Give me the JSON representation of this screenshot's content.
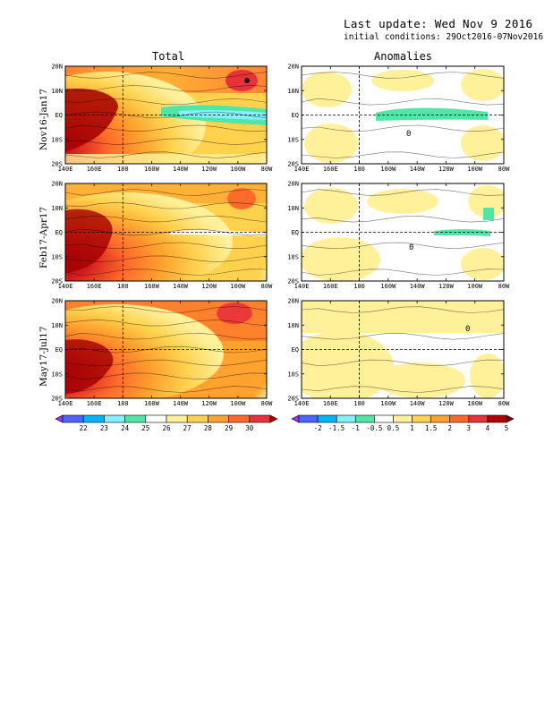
{
  "header": {
    "update": "Last update: Wed Nov 9 2016",
    "initial_conditions": "initial conditions: 29Oct2016-07Nov2016"
  },
  "columns": {
    "total": "Total",
    "anomalies": "Anomalies"
  },
  "rows": [
    "Nov16-Jan17",
    "Feb17-Apr17",
    "May17-Jul17"
  ],
  "axes": {
    "lon_ticks": [
      "140E",
      "160E",
      "180",
      "160W",
      "140W",
      "120W",
      "100W",
      "80W"
    ],
    "lat_ticks": [
      "20N",
      "10N",
      "EQ",
      "10S",
      "20S"
    ]
  },
  "colorbars": {
    "total": {
      "labels": [
        "22",
        "23",
        "24",
        "25",
        "26",
        "27",
        "28",
        "29",
        "30"
      ],
      "colors": [
        "#9d33ee",
        "#4b64ff",
        "#00b4ff",
        "#87f0ff",
        "#4fe6a8",
        "#ffffff",
        "#fff09a",
        "#ffd24d",
        "#ffa32e",
        "#ff6a2b",
        "#e8313a",
        "#b30000"
      ]
    },
    "anomalies": {
      "labels": [
        "-2",
        "-1.5",
        "-1",
        "-0.5",
        "0.5",
        "1",
        "1.5",
        "2",
        "3",
        "4",
        "5"
      ],
      "colors": [
        "#9d33ee",
        "#4b64ff",
        "#00b4ff",
        "#87f0ff",
        "#4fe6a8",
        "#ffffff",
        "#fff09a",
        "#ffd24d",
        "#ffa32e",
        "#ff6a2b",
        "#e8313a",
        "#b30000",
        "#7a0000"
      ]
    }
  },
  "contour_labels": [
    "0",
    "0",
    "0"
  ]
}
